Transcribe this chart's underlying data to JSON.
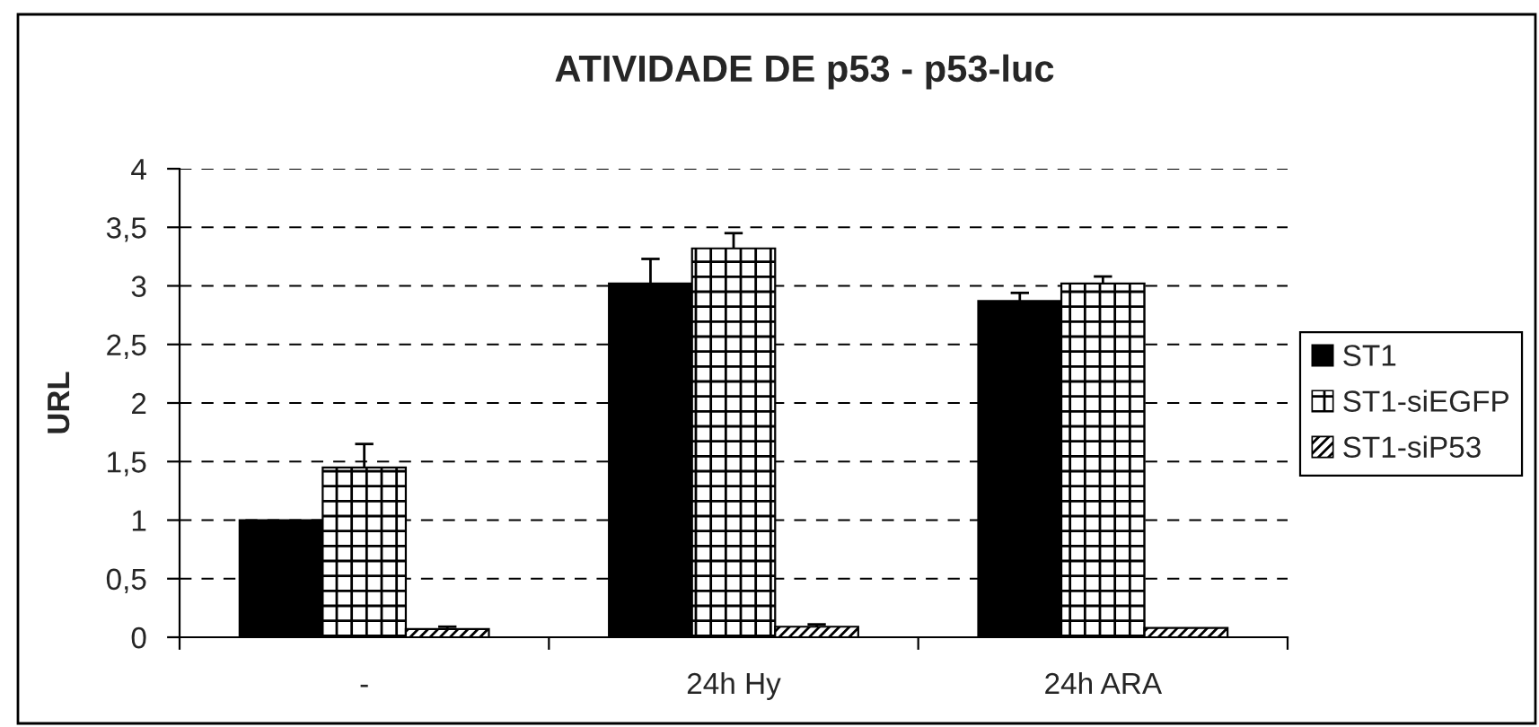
{
  "chart_data": {
    "type": "bar",
    "title": "ATIVIDADE DE p53 - p53-luc",
    "ylabel": "URL",
    "categories": [
      "-",
      "24h Hy",
      "24h ARA"
    ],
    "series": [
      {
        "name": "ST1",
        "color": "#000000",
        "values": [
          1.0,
          3.02,
          2.87
        ],
        "errors": [
          null,
          [
            3.02,
            3.23
          ],
          [
            2.87,
            2.94
          ]
        ]
      },
      {
        "name": "ST1-siEGFP",
        "color": "#000000",
        "values": [
          1.45,
          3.32,
          3.02
        ],
        "errors": [
          [
            1.45,
            1.65
          ],
          [
            3.32,
            3.45
          ],
          [
            3.02,
            3.08
          ]
        ]
      },
      {
        "name": "ST1-siP53",
        "color": "#000000",
        "values": [
          0.07,
          0.09,
          0.08
        ],
        "errors": [
          [
            0.07,
            0.09
          ],
          [
            0.09,
            0.11
          ],
          null
        ]
      }
    ],
    "ylim": [
      0,
      4
    ],
    "yticks": [
      0,
      {
        "value": 0.5,
        "label": "0,5"
      },
      1,
      {
        "value": 1.5,
        "label": "1,5"
      },
      2,
      {
        "value": 2.5,
        "label": "2,5"
      },
      3,
      {
        "value": 3.5,
        "label": "3,5"
      },
      4
    ],
    "grid": "y",
    "legend": "right"
  }
}
